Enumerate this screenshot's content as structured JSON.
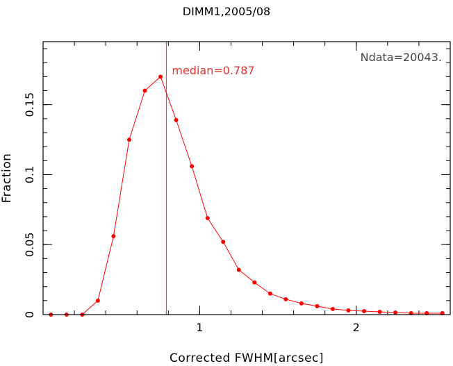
{
  "chart_data": {
    "type": "line",
    "title": "DIMM1,2005/08",
    "xlabel": "Corrected FWHM[arcsec]",
    "ylabel": "Fraction",
    "xlim": [
      0,
      2.6
    ],
    "ylim": [
      0,
      0.195
    ],
    "xticks_major": [
      1,
      2
    ],
    "xticks_minor_step": 0.2,
    "yticks_major": [
      0,
      0.05,
      0.1,
      0.15
    ],
    "yticks_major_labels": [
      "0",
      "0.05",
      "0.1",
      "0.15"
    ],
    "yticks_minor_step": 0.01,
    "annotation": "Ndata=20043.",
    "median": {
      "value": 0.787,
      "label": "median=0.787",
      "color": "#e53030"
    },
    "series_color": "#ff0000",
    "series": [
      {
        "x": [
          0.05,
          0.15,
          0.25,
          0.35,
          0.45,
          0.55,
          0.65,
          0.75,
          0.85,
          0.95,
          1.05,
          1.15,
          1.25,
          1.35,
          1.45,
          1.55,
          1.65,
          1.75,
          1.85,
          1.95,
          2.05,
          2.15,
          2.25,
          2.35,
          2.45,
          2.55
        ],
        "values": [
          0.0,
          0.0,
          0.0,
          0.01,
          0.056,
          0.125,
          0.16,
          0.17,
          0.139,
          0.106,
          0.069,
          0.052,
          0.032,
          0.023,
          0.015,
          0.011,
          0.008,
          0.006,
          0.004,
          0.003,
          0.0025,
          0.002,
          0.0015,
          0.001,
          0.001,
          0.001
        ]
      }
    ]
  }
}
